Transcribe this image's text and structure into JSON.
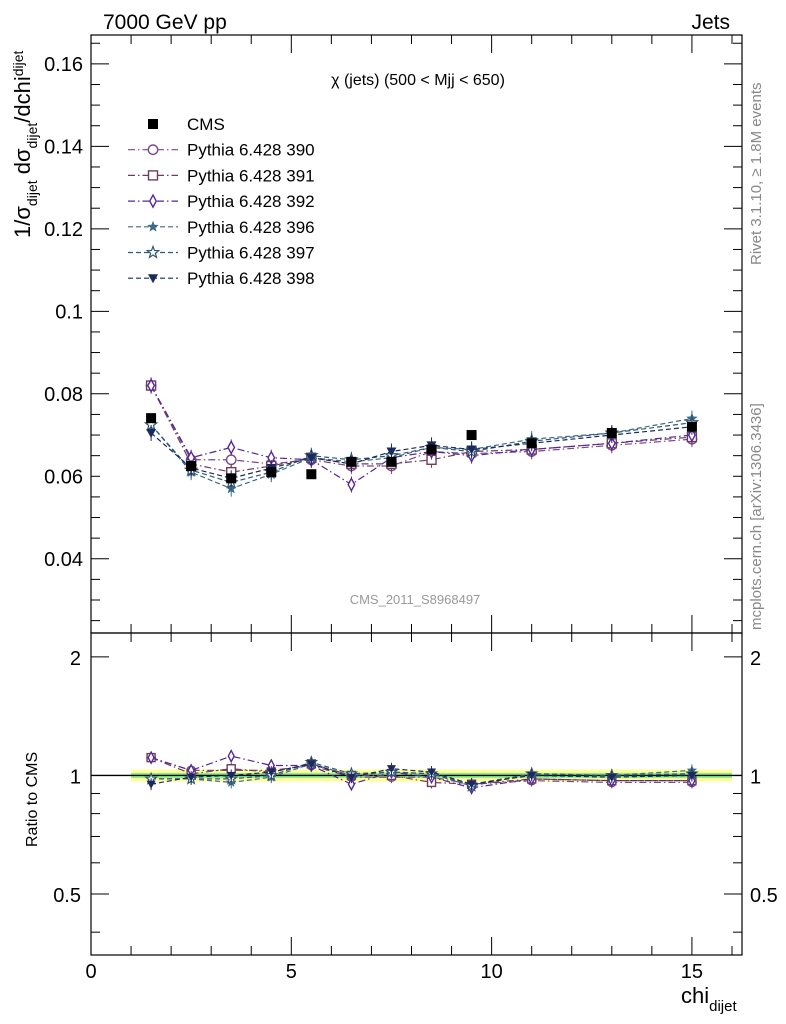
{
  "header": {
    "left": "7000 GeV pp",
    "right": "Jets"
  },
  "side_text": {
    "rivet": "Rivet 3.1.10, ≥ 1.8M events",
    "mcplots": "mcplots.cern.ch [arXiv:1306.3436]"
  },
  "watermark": "CMS_2011_S8968497",
  "colors": {
    "cms": "#000000",
    "p390": "#7a4a86",
    "p391": "#6e3d5e",
    "p392": "#55279a",
    "p396": "#3f6a86",
    "p397": "#2f5878",
    "p398": "#1b2a5c",
    "band_inner": "#90ee90",
    "band_outer": "#ffff99"
  },
  "chart_data": [
    {
      "type": "line",
      "title": "χ (jets) (500 < Mjj <  650)",
      "ylabel": "1/σdijet dσdijet/dchidijet",
      "ylabel_parts": {
        "a": "1/σ",
        "a_sub": "dijet",
        "b": " dσ",
        "b_sub": "dijet",
        "c": "/dchi",
        "c_sub": "dijet"
      },
      "xlim": [
        0,
        16.25
      ],
      "ylim": [
        0.022,
        0.167
      ],
      "y_ticks": [
        "0.04",
        "0.06",
        "0.08",
        "0.1",
        "0.12",
        "0.14",
        "0.16"
      ],
      "x": [
        1.5,
        2.5,
        3.5,
        4.5,
        5.5,
        6.5,
        7.5,
        8.5,
        9.5,
        11,
        13,
        15
      ],
      "legend_position": "top-left",
      "series": [
        {
          "name": "CMS",
          "key": "cms",
          "marker": "filled-square",
          "values": [
            0.0741,
            0.0625,
            0.0595,
            0.061,
            0.0605,
            0.0635,
            0.0635,
            0.0665,
            0.07,
            0.068,
            0.0705,
            0.072
          ]
        },
        {
          "name": "Pythia 6.428 390",
          "key": "p390",
          "marker": "open-circle",
          "dash": "dashdot",
          "values": [
            0.082,
            0.064,
            0.064,
            0.063,
            0.064,
            0.0625,
            0.0625,
            0.066,
            0.0655,
            0.066,
            0.0675,
            0.069
          ]
        },
        {
          "name": "Pythia 6.428 391",
          "key": "p391",
          "marker": "open-square",
          "dash": "dashdot",
          "values": [
            0.082,
            0.063,
            0.061,
            0.0625,
            0.0645,
            0.063,
            0.063,
            0.064,
            0.066,
            0.0665,
            0.068,
            0.0695
          ]
        },
        {
          "name": "Pythia 6.428 392",
          "key": "p392",
          "marker": "open-diamond",
          "dash": "dashdot",
          "values": [
            0.082,
            0.0645,
            0.067,
            0.0645,
            0.064,
            0.058,
            0.0645,
            0.066,
            0.065,
            0.0665,
            0.068,
            0.07
          ]
        },
        {
          "name": "Pythia 6.428 396",
          "key": "p396",
          "marker": "filled-star",
          "dash": "dashed",
          "values": [
            0.0725,
            0.061,
            0.057,
            0.0605,
            0.0645,
            0.0635,
            0.0645,
            0.067,
            0.0665,
            0.069,
            0.0705,
            0.074
          ]
        },
        {
          "name": "Pythia 6.428 397",
          "key": "p397",
          "marker": "open-star",
          "dash": "dashed",
          "values": [
            0.0725,
            0.0615,
            0.0585,
            0.061,
            0.065,
            0.064,
            0.065,
            0.067,
            0.066,
            0.0685,
            0.0705,
            0.073
          ]
        },
        {
          "name": "Pythia 6.428 398",
          "key": "p398",
          "marker": "filled-triangle-down",
          "dash": "dashed",
          "values": [
            0.0705,
            0.062,
            0.0595,
            0.062,
            0.0645,
            0.063,
            0.066,
            0.0675,
            0.0665,
            0.068,
            0.07,
            0.072
          ]
        }
      ]
    },
    {
      "type": "line",
      "ylabel": "Ratio to CMS",
      "xlabel": "chidijet",
      "xlabel_parts": {
        "main": "chi",
        "sub": "dijet"
      },
      "xlim": [
        0,
        16.25
      ],
      "ylim": [
        0.35,
        2.3
      ],
      "y_ticks": [
        "0.5",
        "1",
        "2"
      ],
      "x_ticks": [
        "0",
        "5",
        "10",
        "15"
      ],
      "x": [
        1.5,
        2.5,
        3.5,
        4.5,
        5.5,
        6.5,
        7.5,
        8.5,
        9.5,
        11,
        13,
        15
      ],
      "x_bins": [
        [
          1,
          2
        ],
        [
          2,
          3
        ],
        [
          3,
          4
        ],
        [
          4,
          5
        ],
        [
          5,
          6
        ],
        [
          6,
          7
        ],
        [
          7,
          8
        ],
        [
          8,
          9
        ],
        [
          9,
          10
        ],
        [
          10,
          12
        ],
        [
          12,
          14
        ],
        [
          14,
          16
        ]
      ],
      "band_inner": [
        0.985,
        1.015
      ],
      "band_outer": [
        0.965,
        1.035
      ],
      "series": [
        {
          "key": "p390",
          "marker": "open-circle",
          "dash": "dashdot",
          "values": [
            1.11,
            1.03,
            1.03,
            1.03,
            1.06,
            0.99,
            0.99,
            0.99,
            0.95,
            0.97,
            0.96,
            0.96
          ]
        },
        {
          "key": "p391",
          "marker": "open-square",
          "dash": "dashdot",
          "values": [
            1.11,
            1.01,
            1.04,
            1.02,
            1.07,
            1.0,
            1.0,
            0.96,
            0.95,
            0.98,
            0.97,
            0.97
          ]
        },
        {
          "key": "p392",
          "marker": "open-diamond",
          "dash": "dashdot",
          "values": [
            1.11,
            1.03,
            1.12,
            1.06,
            1.06,
            0.95,
            1.02,
            0.99,
            0.93,
            0.98,
            0.97,
            0.97
          ]
        },
        {
          "key": "p396",
          "marker": "filled-star",
          "dash": "dashed",
          "values": [
            0.98,
            0.98,
            0.96,
            0.99,
            1.07,
            1.0,
            1.02,
            1.01,
            0.95,
            1.01,
            1.0,
            1.03
          ]
        },
        {
          "key": "p397",
          "marker": "open-star",
          "dash": "dashed",
          "values": [
            0.98,
            0.98,
            0.98,
            1.0,
            1.08,
            1.01,
            1.02,
            1.01,
            0.94,
            1.01,
            1.0,
            1.01
          ]
        },
        {
          "key": "p398",
          "marker": "filled-triangle-down",
          "dash": "dashed",
          "values": [
            0.95,
            0.99,
            1.0,
            1.02,
            1.07,
            0.99,
            1.04,
            1.02,
            0.95,
            1.0,
            0.99,
            1.0
          ]
        }
      ]
    }
  ]
}
